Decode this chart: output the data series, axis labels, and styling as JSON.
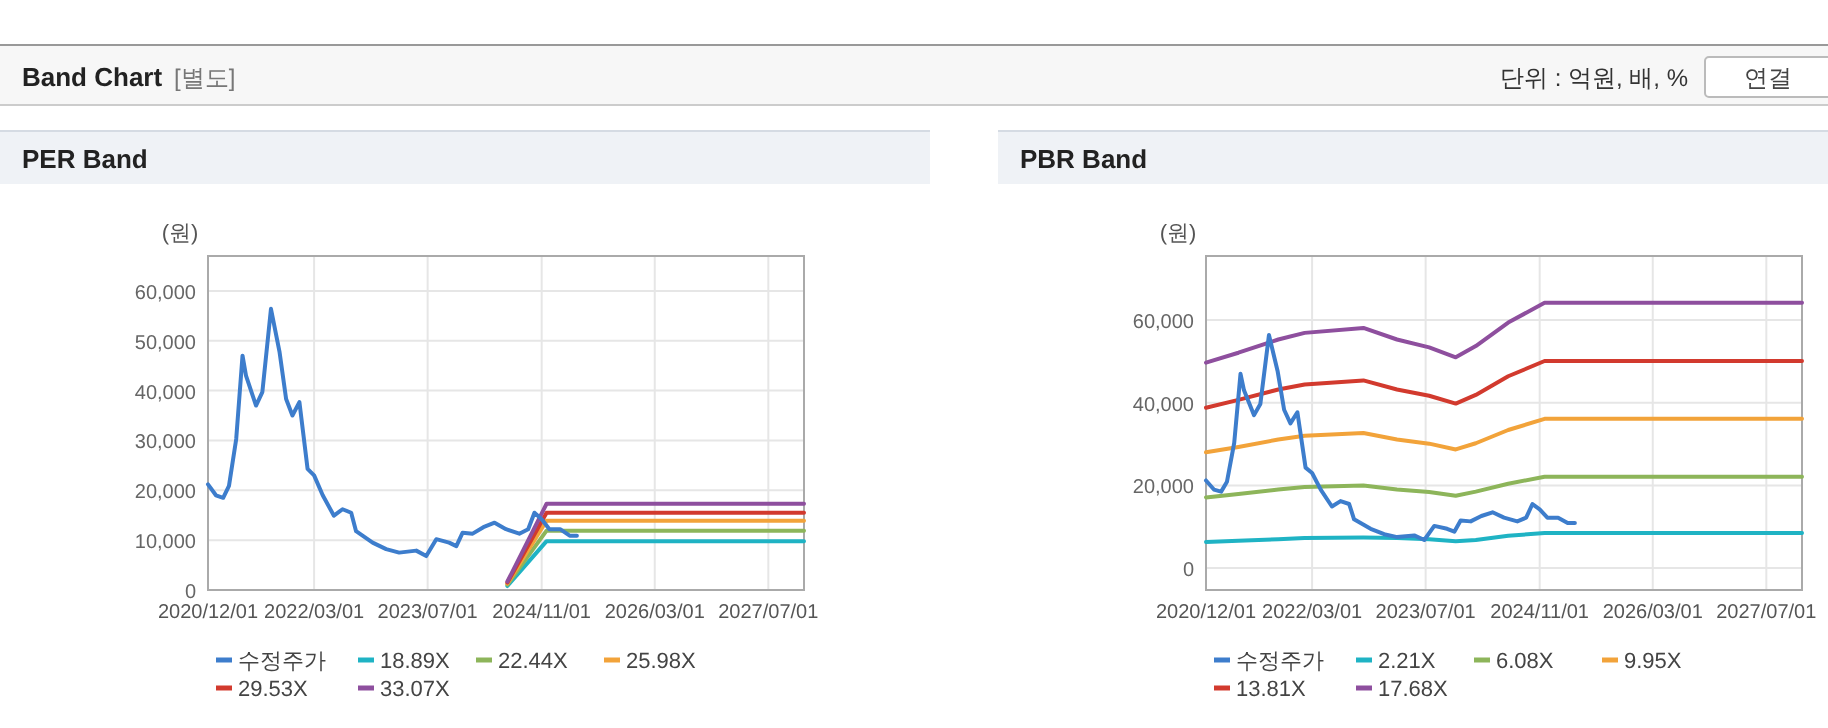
{
  "chart_data": [
    {
      "type": "line",
      "title": "PER Band",
      "ylabel": "(원)",
      "annotations": [
        "Band Chart",
        "[별도]",
        "단위 : 억원, 배, %",
        "연결"
      ],
      "grid": true,
      "legend": "bottom",
      "marker": "none",
      "line_style": "solid",
      "xlim": [
        "2020-12-01",
        "2027-12-01"
      ],
      "xticks": [
        {
          "value": "2020-12-01",
          "label": "2020/12/01"
        },
        {
          "value": "2022-03-01",
          "label": "2022/03/01"
        },
        {
          "value": "2023-07-01",
          "label": "2023/07/01"
        },
        {
          "value": "2024-11-01",
          "label": "2024/11/01"
        },
        {
          "value": "2026-03-01",
          "label": "2026/03/01"
        },
        {
          "value": "2027-07-01",
          "label": "2027/07/01"
        }
      ],
      "ylim": [
        0,
        67000
      ],
      "yticks": [
        0,
        {
          "value": 10000,
          "label": "10,000"
        },
        {
          "value": 20000,
          "label": "20,000"
        },
        {
          "value": 30000,
          "label": "30,000"
        },
        {
          "value": 40000,
          "label": "40,000"
        },
        {
          "value": 50000,
          "label": "50,000"
        },
        {
          "value": 60000,
          "label": "60,000"
        }
      ],
      "series": [
        {
          "name": "수정주가",
          "color": "#3d7dcc",
          "x": [
            "2020-12-01",
            "2021-01-04",
            "2021-02-04",
            "2021-03-01",
            "2021-04-01",
            "2021-04-28",
            "2021-05-13",
            "2021-06-25",
            "2021-07-22",
            "2021-08-28",
            "2021-10-04",
            "2021-11-01",
            "2021-11-28",
            "2021-12-28",
            "2022-02-01",
            "2022-03-01",
            "2022-04-07",
            "2022-05-25",
            "2022-07-01",
            "2022-08-07",
            "2022-08-28",
            "2022-11-07",
            "2023-01-04",
            "2023-03-01",
            "2023-05-13",
            "2023-06-25",
            "2023-08-07",
            "2023-10-01",
            "2023-11-01",
            "2023-11-28",
            "2024-01-10",
            "2024-02-25",
            "2024-04-13",
            "2024-06-01",
            "2024-07-28",
            "2024-09-04",
            "2024-10-01",
            "2024-11-01",
            "2024-12-04",
            "2025-01-19",
            "2025-03-01",
            "2025-04-01"
          ],
          "values": [
            21200,
            19000,
            18500,
            20900,
            30300,
            47000,
            43000,
            37000,
            39700,
            56400,
            47700,
            38300,
            35000,
            37700,
            24300,
            23000,
            19000,
            14900,
            16200,
            15500,
            11800,
            9500,
            8200,
            7500,
            7900,
            6800,
            10200,
            9500,
            8800,
            11500,
            11300,
            12600,
            13500,
            12200,
            11300,
            12200,
            15500,
            14200,
            12200,
            12200,
            10900,
            10900
          ]
        },
        {
          "name": "18.89X",
          "color": "#1fb3c4",
          "x": [
            "2024-06-07",
            "2024-11-22",
            "2027-12-01"
          ],
          "values": [
            800,
            9800,
            9800
          ]
        },
        {
          "name": "22.44X",
          "color": "#8db55a",
          "x": [
            "2024-06-07",
            "2024-11-22",
            "2027-12-01"
          ],
          "values": [
            1100,
            11900,
            11900
          ]
        },
        {
          "name": "25.98X",
          "color": "#f2a33a",
          "x": [
            "2024-06-07",
            "2024-11-22",
            "2027-12-01"
          ],
          "values": [
            1300,
            13900,
            13900
          ]
        },
        {
          "name": "29.53X",
          "color": "#d23a2e",
          "x": [
            "2024-06-07",
            "2024-11-22",
            "2027-12-01"
          ],
          "values": [
            1500,
            15500,
            15500
          ]
        },
        {
          "name": "33.07X",
          "color": "#8e4f9e",
          "x": [
            "2024-06-07",
            "2024-11-22",
            "2027-12-01"
          ],
          "values": [
            1700,
            17300,
            17300
          ]
        }
      ]
    },
    {
      "type": "line",
      "title": "PBR Band",
      "ylabel": "(원)",
      "grid": true,
      "legend": "bottom",
      "marker": "none",
      "line_style": "solid",
      "xlim": [
        "2020-12-01",
        "2027-12-01"
      ],
      "xticks": [
        {
          "value": "2020-12-01",
          "label": "2020/12/01"
        },
        {
          "value": "2022-03-01",
          "label": "2022/03/01"
        },
        {
          "value": "2023-07-01",
          "label": "2023/07/01"
        },
        {
          "value": "2024-11-01",
          "label": "2024/11/01"
        },
        {
          "value": "2026-03-01",
          "label": "2026/03/01"
        },
        {
          "value": "2027-07-01",
          "label": "2027/07/01"
        }
      ],
      "ylim": [
        -5300,
        75500
      ],
      "yticks": [
        0,
        {
          "value": 20000,
          "label": "20,000"
        },
        {
          "value": 40000,
          "label": "40,000"
        },
        {
          "value": 60000,
          "label": "60,000"
        }
      ],
      "series": [
        {
          "name": "수정주가",
          "color": "#3d7dcc",
          "x": [
            "2020-12-01",
            "2021-01-04",
            "2021-02-04",
            "2021-03-01",
            "2021-04-01",
            "2021-04-28",
            "2021-05-13",
            "2021-06-25",
            "2021-07-22",
            "2021-08-28",
            "2021-10-04",
            "2021-11-01",
            "2021-11-28",
            "2021-12-28",
            "2022-02-01",
            "2022-03-01",
            "2022-04-07",
            "2022-05-25",
            "2022-07-01",
            "2022-08-07",
            "2022-08-28",
            "2022-11-07",
            "2023-01-04",
            "2023-03-01",
            "2023-05-13",
            "2023-06-25",
            "2023-08-07",
            "2023-10-01",
            "2023-11-01",
            "2023-11-28",
            "2024-01-10",
            "2024-02-25",
            "2024-04-13",
            "2024-06-01",
            "2024-07-28",
            "2024-09-04",
            "2024-10-01",
            "2024-11-01",
            "2024-12-04",
            "2025-01-19",
            "2025-03-01",
            "2025-04-01"
          ],
          "values": [
            21200,
            19000,
            18500,
            20900,
            30300,
            47000,
            43000,
            37000,
            39700,
            56400,
            47700,
            38300,
            35000,
            37700,
            24300,
            23000,
            19000,
            14900,
            16200,
            15500,
            11800,
            9500,
            8200,
            7500,
            7900,
            6800,
            10200,
            9500,
            8800,
            11500,
            11300,
            12600,
            13500,
            12200,
            11300,
            12200,
            15500,
            14200,
            12200,
            12200,
            10900,
            10900
          ]
        },
        {
          "name": "2.21X",
          "color": "#1fb3c4",
          "x": [
            "2020-12-01",
            "2021-04-19",
            "2021-10-07",
            "2022-01-28",
            "2022-10-07",
            "2023-02-28",
            "2023-07-16",
            "2023-11-07",
            "2024-02-01",
            "2024-06-19",
            "2024-11-22",
            "2027-12-01"
          ],
          "values": [
            6300,
            6600,
            7000,
            7300,
            7400,
            7300,
            7000,
            6500,
            6800,
            7800,
            8500,
            8500
          ]
        },
        {
          "name": "6.08X",
          "color": "#8db55a",
          "x": [
            "2020-12-01",
            "2021-04-19",
            "2021-10-07",
            "2022-01-28",
            "2022-10-07",
            "2023-02-28",
            "2023-07-16",
            "2023-11-07",
            "2024-02-01",
            "2024-06-19",
            "2024-11-22",
            "2027-12-01"
          ],
          "values": [
            17100,
            17900,
            19000,
            19600,
            20000,
            19000,
            18400,
            17500,
            18500,
            20400,
            22100,
            22100
          ]
        },
        {
          "name": "9.95X",
          "color": "#f2a33a",
          "x": [
            "2020-12-01",
            "2021-04-19",
            "2021-10-07",
            "2022-01-28",
            "2022-10-07",
            "2023-02-28",
            "2023-07-16",
            "2023-11-07",
            "2024-02-01",
            "2024-06-19",
            "2024-11-22",
            "2027-12-01"
          ],
          "values": [
            28000,
            29300,
            31100,
            32000,
            32700,
            31100,
            30100,
            28700,
            30200,
            33400,
            36100,
            36100
          ]
        },
        {
          "name": "13.81X",
          "color": "#d23a2e",
          "x": [
            "2020-12-01",
            "2021-04-19",
            "2021-10-07",
            "2022-01-28",
            "2022-10-07",
            "2023-02-28",
            "2023-07-16",
            "2023-11-07",
            "2024-02-01",
            "2024-06-19",
            "2024-11-22",
            "2027-12-01"
          ],
          "values": [
            38800,
            40700,
            43200,
            44400,
            45400,
            43200,
            41700,
            39800,
            41900,
            46400,
            50100,
            50100
          ]
        },
        {
          "name": "17.68X",
          "color": "#8e4f9e",
          "x": [
            "2020-12-01",
            "2021-04-19",
            "2021-10-07",
            "2022-01-28",
            "2022-10-07",
            "2023-02-28",
            "2023-07-16",
            "2023-11-07",
            "2024-02-01",
            "2024-06-19",
            "2024-11-22",
            "2027-12-01"
          ],
          "values": [
            49700,
            52100,
            55300,
            56900,
            58100,
            55300,
            53400,
            51000,
            53700,
            59400,
            64200,
            64200
          ]
        }
      ]
    }
  ]
}
